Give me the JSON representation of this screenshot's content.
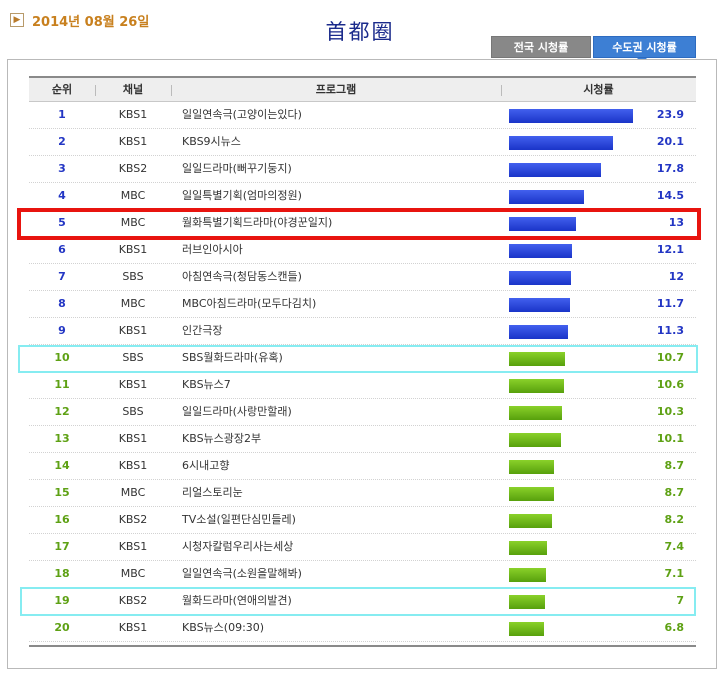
{
  "header": {
    "date_arrow": "▶",
    "date": "2014년 08월 26일",
    "title": "首都圈"
  },
  "tabs": [
    {
      "label": "전국 시청률",
      "active": false
    },
    {
      "label": "수도권 시청률",
      "active": true
    }
  ],
  "table": {
    "columns": [
      "순위",
      "채널",
      "프로그램",
      "시청률"
    ],
    "rows": [
      {
        "rank": "1",
        "channel": "KBS1",
        "program": "일일연속극(고양이는있다)",
        "rating": "23.9",
        "value": 23.9,
        "color": "blue"
      },
      {
        "rank": "2",
        "channel": "KBS1",
        "program": "KBS9시뉴스",
        "rating": "20.1",
        "value": 20.1,
        "color": "blue"
      },
      {
        "rank": "3",
        "channel": "KBS2",
        "program": "일일드라마(뻐꾸기둥지)",
        "rating": "17.8",
        "value": 17.8,
        "color": "blue"
      },
      {
        "rank": "4",
        "channel": "MBC",
        "program": "일일특별기획(엄마의정원)",
        "rating": "14.5",
        "value": 14.5,
        "color": "blue"
      },
      {
        "rank": "5",
        "channel": "MBC",
        "program": "월화특별기획드라마(야경꾼일지)",
        "rating": "13",
        "value": 13,
        "color": "blue"
      },
      {
        "rank": "6",
        "channel": "KBS1",
        "program": "러브인아시아",
        "rating": "12.1",
        "value": 12.1,
        "color": "blue"
      },
      {
        "rank": "7",
        "channel": "SBS",
        "program": "아침연속극(청담동스캔들)",
        "rating": "12",
        "value": 12,
        "color": "blue"
      },
      {
        "rank": "8",
        "channel": "MBC",
        "program": "MBC아침드라마(모두다김치)",
        "rating": "11.7",
        "value": 11.7,
        "color": "blue"
      },
      {
        "rank": "9",
        "channel": "KBS1",
        "program": "인간극장",
        "rating": "11.3",
        "value": 11.3,
        "color": "blue"
      },
      {
        "rank": "10",
        "channel": "SBS",
        "program": "SBS월화드라마(유혹)",
        "rating": "10.7",
        "value": 10.7,
        "color": "green"
      },
      {
        "rank": "11",
        "channel": "KBS1",
        "program": "KBS뉴스7",
        "rating": "10.6",
        "value": 10.6,
        "color": "green"
      },
      {
        "rank": "12",
        "channel": "SBS",
        "program": "일일드라마(사랑만할래)",
        "rating": "10.3",
        "value": 10.3,
        "color": "green"
      },
      {
        "rank": "13",
        "channel": "KBS1",
        "program": "KBS뉴스광장2부",
        "rating": "10.1",
        "value": 10.1,
        "color": "green"
      },
      {
        "rank": "14",
        "channel": "KBS1",
        "program": "6시내고향",
        "rating": "8.7",
        "value": 8.7,
        "color": "green"
      },
      {
        "rank": "15",
        "channel": "MBC",
        "program": "리얼스토리눈",
        "rating": "8.7",
        "value": 8.7,
        "color": "green"
      },
      {
        "rank": "16",
        "channel": "KBS2",
        "program": "TV소설(일편단심민들레)",
        "rating": "8.2",
        "value": 8.2,
        "color": "green"
      },
      {
        "rank": "17",
        "channel": "KBS1",
        "program": "시청자칼럼우리사는세상",
        "rating": "7.4",
        "value": 7.4,
        "color": "green"
      },
      {
        "rank": "18",
        "channel": "MBC",
        "program": "일일연속극(소원을말해봐)",
        "rating": "7.1",
        "value": 7.1,
        "color": "green"
      },
      {
        "rank": "19",
        "channel": "KBS2",
        "program": "월화드라마(연애의발견)",
        "rating": "7",
        "value": 7,
        "color": "green"
      },
      {
        "rank": "20",
        "channel": "KBS1",
        "program": "KBS뉴스(09:30)",
        "rating": "6.8",
        "value": 6.8,
        "color": "green"
      }
    ]
  },
  "highlights": {
    "red_rank": "5",
    "cyan_ranks": [
      "10",
      "19"
    ],
    "red_color": "#e8140f",
    "cyan_color": "#86ecf1"
  },
  "colors": {
    "blue_bar": "#2a44d8",
    "green_bar": "#6db71c",
    "date_text": "#c8801e",
    "title": "#1b2b8c",
    "active_tab": "#3d7fd4"
  }
}
